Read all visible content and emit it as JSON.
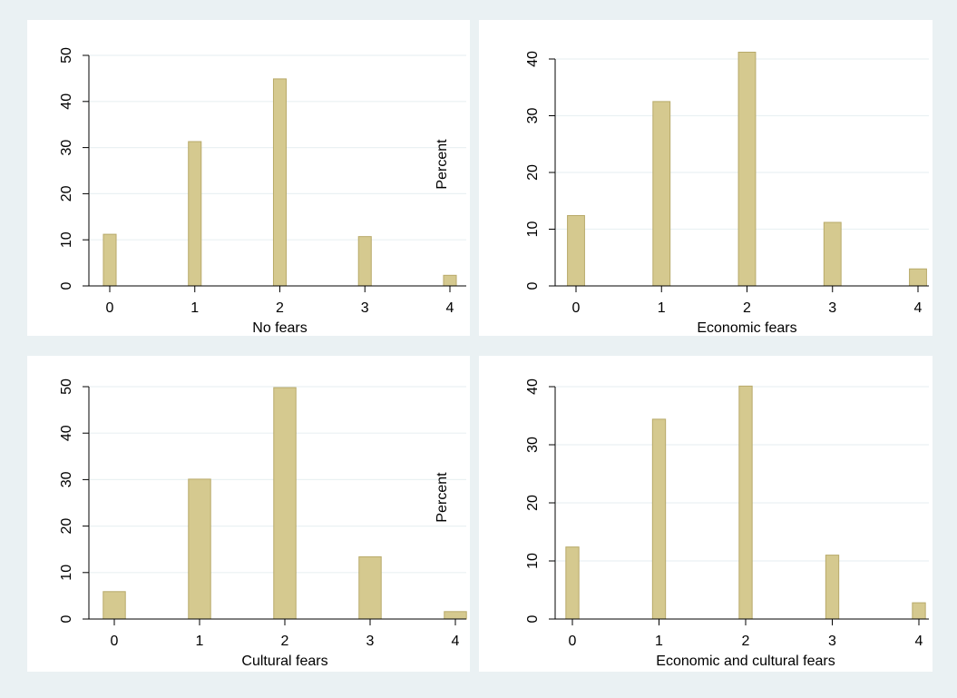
{
  "colors": {
    "outer_background": "#eaf1f3",
    "plot_background": "#ffffff",
    "bar_fill": "#d5c98f",
    "bar_stroke": "#b8aa6a",
    "gridline": "#eaf1f3",
    "axis": "#000000"
  },
  "chart_data": [
    {
      "type": "bar",
      "xlabel": "No fears",
      "ylabel": "",
      "x": [
        0,
        1,
        2,
        3,
        4
      ],
      "values": [
        11.2,
        31.3,
        44.9,
        10.7,
        2.3
      ],
      "ylim": [
        0,
        50
      ],
      "yticks": [
        0,
        10,
        20,
        30,
        40,
        50
      ],
      "xticks": [
        0,
        1,
        2,
        3,
        4
      ],
      "bar_width": 0.15,
      "grid": true
    },
    {
      "type": "bar",
      "xlabel": "Economic fears",
      "ylabel": "Percent",
      "x": [
        0,
        1,
        2,
        3,
        4
      ],
      "values": [
        12.4,
        32.5,
        41.2,
        11.2,
        3.0
      ],
      "ylim": [
        0,
        40
      ],
      "yticks": [
        0,
        10,
        20,
        30,
        40
      ],
      "xticks": [
        0,
        1,
        2,
        3,
        4
      ],
      "bar_width": 0.2,
      "grid": true
    },
    {
      "type": "bar",
      "xlabel": "Cultural fears",
      "ylabel": "",
      "x": [
        0,
        1,
        2,
        3,
        4
      ],
      "values": [
        5.9,
        30.1,
        49.8,
        13.4,
        1.6
      ],
      "ylim": [
        0,
        50
      ],
      "yticks": [
        0,
        10,
        20,
        30,
        40,
        50
      ],
      "xticks": [
        0,
        1,
        2,
        3,
        4
      ],
      "bar_width": 0.26,
      "grid": true
    },
    {
      "type": "bar",
      "xlabel": "Economic and cultural fears",
      "ylabel": "Percent",
      "x": [
        0,
        1,
        2,
        3,
        4
      ],
      "values": [
        12.4,
        34.4,
        40.1,
        11.0,
        2.8
      ],
      "ylim": [
        0,
        40
      ],
      "yticks": [
        0,
        10,
        20,
        30,
        40
      ],
      "xticks": [
        0,
        1,
        2,
        3,
        4
      ],
      "bar_width": 0.15,
      "grid": true
    }
  ]
}
